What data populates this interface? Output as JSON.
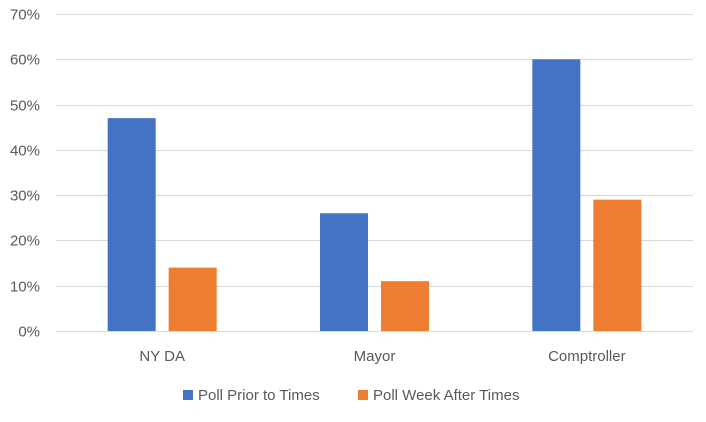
{
  "chart_data": {
    "type": "bar",
    "title": "",
    "xlabel": "",
    "ylabel": "",
    "categories": [
      "NY DA",
      "Mayor",
      "Comptroller"
    ],
    "series": [
      {
        "name": "Poll Prior to Times",
        "values": [
          0.47,
          0.26,
          0.6
        ],
        "color": "#4472C4"
      },
      {
        "name": "Poll Week After Times",
        "values": [
          0.14,
          0.11,
          0.29
        ],
        "color": "#ED7D31"
      }
    ],
    "ylim": [
      0,
      0.7
    ],
    "yticks": [
      0,
      0.1,
      0.2,
      0.3,
      0.4,
      0.5,
      0.6,
      0.7
    ],
    "ytick_labels": [
      "0%",
      "10%",
      "20%",
      "30%",
      "40%",
      "50%",
      "60%",
      "70%"
    ],
    "grid": true,
    "legend_position": "bottom",
    "gridline_color": "#D9D9D9"
  }
}
